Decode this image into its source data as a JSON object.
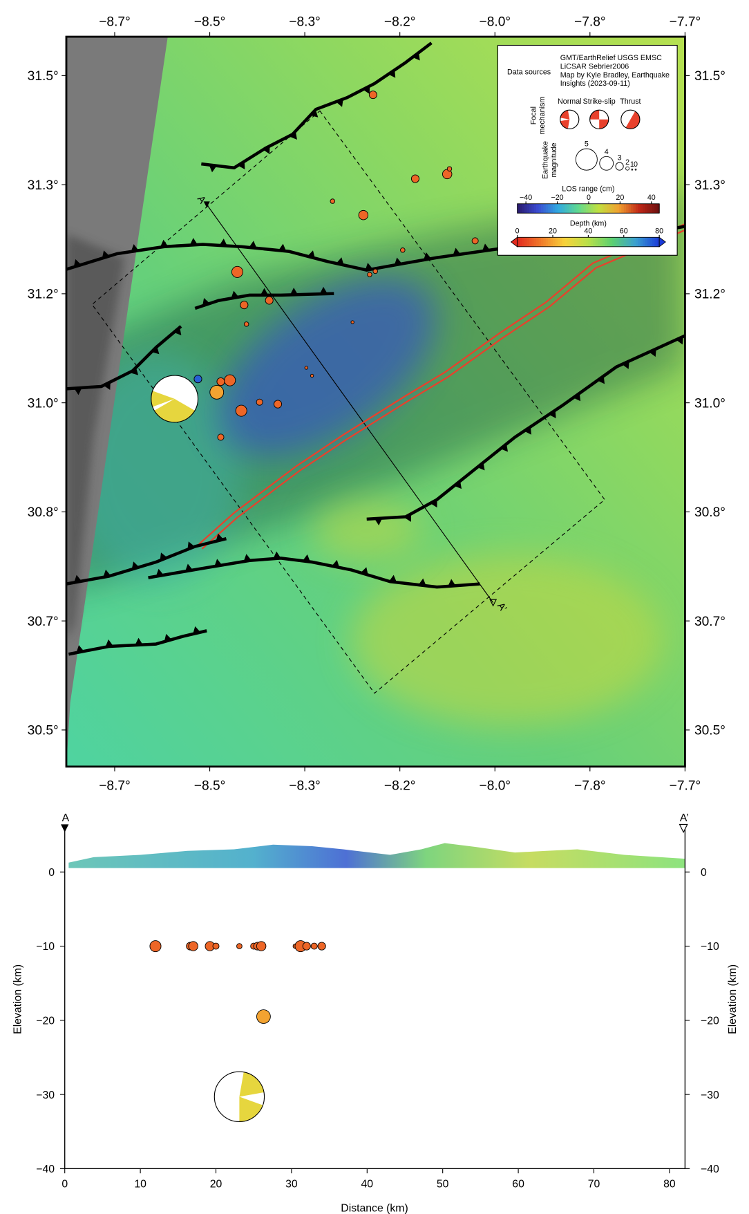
{
  "map": {
    "type": "map",
    "xlim": [
      -8.7448,
      -7.66
    ],
    "ylim": [
      30.4546,
      31.5589
    ],
    "xticks": [
      {
        "value": -8.66,
        "label": "−8.7°"
      },
      {
        "value": -8.4933,
        "label": "−8.5°"
      },
      {
        "value": -8.3267,
        "label": "−8.3°"
      },
      {
        "value": -8.16,
        "label": "−8.2°"
      },
      {
        "value": -7.9933,
        "label": "−8.0°"
      },
      {
        "value": -7.8267,
        "label": "−7.8°"
      },
      {
        "value": -7.66,
        "label": "−7.7°"
      }
    ],
    "yticks": [
      {
        "value": 31.5,
        "label": "31.5°"
      },
      {
        "value": 31.335,
        "label": "31.3°"
      },
      {
        "value": 31.17,
        "label": "31.2°"
      },
      {
        "value": 31.005,
        "label": "31.0°"
      },
      {
        "value": 30.84,
        "label": "30.8°"
      },
      {
        "value": 30.675,
        "label": "30.7°"
      },
      {
        "value": 30.51,
        "label": "30.5°"
      }
    ],
    "events": {
      "lon": [
        -8.207,
        -8.133,
        -8.077,
        -8.073,
        -8.278,
        -8.224,
        -8.155,
        -8.028,
        -8.203,
        -8.213,
        -8.445,
        -8.389,
        -8.433,
        -8.429,
        -8.243,
        -8.324,
        -8.314,
        -8.474,
        -8.458,
        -8.438,
        -8.406,
        -8.374,
        -8.474,
        -8.481,
        -8.514
      ],
      "lat": [
        31.471,
        31.344,
        31.351,
        31.359,
        31.31,
        31.289,
        31.236,
        31.25,
        31.204,
        31.199,
        31.203,
        31.16,
        31.153,
        31.124,
        31.127,
        31.058,
        31.046,
        31.037,
        31.039,
        30.993,
        31.006,
        31.003,
        30.953,
        31.021,
        31.041
      ],
      "depth": [
        10,
        10,
        10,
        10,
        10,
        10,
        10,
        10,
        10,
        10,
        10,
        10,
        10,
        10,
        10,
        10,
        10,
        10,
        10,
        10,
        10,
        10,
        10,
        19.5,
        75
      ],
      "magnitude": [
        3.0,
        3.0,
        3.3,
        2.3,
        2.3,
        3.3,
        2.3,
        2.7,
        2.3,
        2.3,
        3.6,
        3.0,
        3.0,
        2.3,
        1.9,
        1.9,
        1.9,
        3.0,
        3.6,
        3.6,
        2.7,
        3.0,
        2.7,
        4.0,
        3.0
      ]
    },
    "focal_mechanism": {
      "lon": -8.555,
      "lat": 31.011,
      "depth": 30.3
    },
    "profile": {
      "start_label": "A",
      "end_label": "A’"
    }
  },
  "legend": {
    "data_sources_label": "Data sources",
    "data_sources": [
      "GMT/EarthRelief USGS EMSC",
      "LiCSAR Sebrier2006",
      "Map by Kyle Bradley, Earthquake",
      "Insights (2023-09-11)"
    ],
    "focal_title": [
      "Focal",
      "mechanism"
    ],
    "focal_types": [
      "Normal",
      "Strike-slip",
      "Thrust"
    ],
    "magnitude_title": [
      "Earthquake",
      "magnitude"
    ],
    "magnitudes": [
      5,
      4,
      3,
      2,
      1,
      0
    ],
    "los": {
      "title": "LOS range (cm)",
      "lim": [
        -45.5,
        45
      ],
      "ticks": [
        {
          "value": -40,
          "label": "−40"
        },
        {
          "value": -20,
          "label": "−20"
        },
        0,
        20,
        40
      ],
      "colors": [
        "#2a1a6a",
        "#3a4ad0",
        "#30a8e0",
        "#60d890",
        "#c0e040",
        "#f0a030",
        "#c02818",
        "#6a1010"
      ]
    },
    "depth": {
      "title": "Depth (km)",
      "lim": [
        0,
        80
      ],
      "ticks": [
        0,
        20,
        40,
        60,
        80
      ],
      "colors": [
        "#e22a1e",
        "#f07a2a",
        "#f7d23a",
        "#b8e04a",
        "#5cd070",
        "#3aa0d0",
        "#1a3ad8"
      ]
    }
  },
  "chart_data": {
    "type": "scatter",
    "x_label": "Distance (km)",
    "y_label": "Elevation (km)",
    "xlim": [
      0,
      82.06
    ],
    "ylim": [
      -40,
      6
    ],
    "xticks": [
      0,
      10,
      20,
      30,
      40,
      50,
      60,
      70,
      80
    ],
    "yticks": [
      {
        "value": -40,
        "label": "−40"
      },
      {
        "value": -30,
        "label": "−30"
      },
      {
        "value": -20,
        "label": "−20"
      },
      {
        "value": -10,
        "label": "−10"
      },
      0
    ],
    "x": [
      12,
      16.6,
      17,
      19.2,
      20,
      23.1,
      25,
      25.5,
      26,
      30.5,
      31.2,
      32,
      33,
      34,
      26.3
    ],
    "elevation": [
      -10,
      -10,
      -10,
      -10,
      -10,
      -10,
      -10,
      -10,
      -10,
      -10,
      -10,
      -10,
      -10,
      -10,
      -19.5
    ],
    "magnitude": [
      3.6,
      3.0,
      3.3,
      3.3,
      2.7,
      2.5,
      2.7,
      3.0,
      3.3,
      2.3,
      3.6,
      3.0,
      2.7,
      3.0,
      4.0
    ],
    "focal_mechanism": {
      "x": 23.1,
      "elevation": -30.3
    }
  }
}
